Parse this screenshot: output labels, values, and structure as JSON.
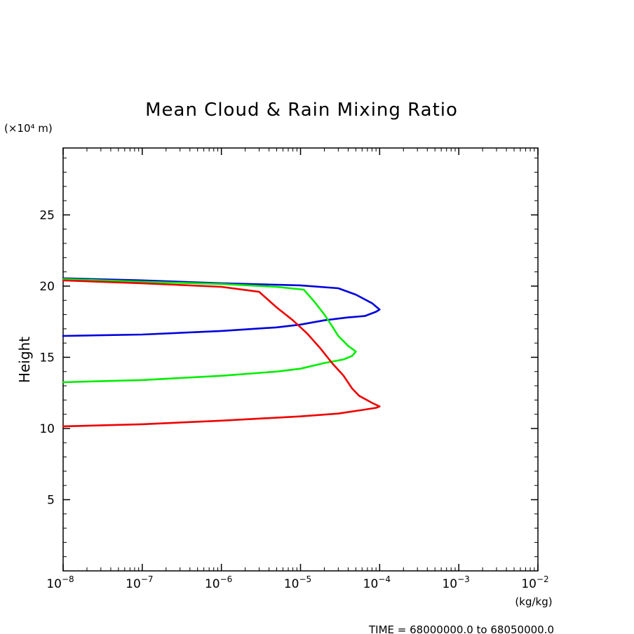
{
  "chart_data": {
    "type": "line",
    "title": "Mean Cloud & Rain Mixing Ratio",
    "ylabel": "Height",
    "y_unit_label": "(×10⁴ m)",
    "x_unit_label": "(kg/kg)",
    "footer": "TIME = 68000000.0 to 68050000.0",
    "xscale": "log",
    "xlim": [
      1e-08,
      0.01
    ],
    "ylim": [
      0,
      29.7
    ],
    "x_ticks": [
      {
        "base": "10",
        "exp": "−8",
        "value": 1e-08
      },
      {
        "base": "10",
        "exp": "−7",
        "value": 1e-07
      },
      {
        "base": "10",
        "exp": "−6",
        "value": 1e-06
      },
      {
        "base": "10",
        "exp": "−5",
        "value": 1e-05
      },
      {
        "base": "10",
        "exp": "−4",
        "value": 0.0001
      },
      {
        "base": "10",
        "exp": "−3",
        "value": 0.001
      },
      {
        "base": "10",
        "exp": "−2",
        "value": 0.01
      }
    ],
    "y_ticks": [
      {
        "label": "5",
        "value": 5
      },
      {
        "label": "10",
        "value": 10
      },
      {
        "label": "15",
        "value": 15
      },
      {
        "label": "20",
        "value": 20
      },
      {
        "label": "25",
        "value": 25
      }
    ],
    "grid": false,
    "legend": "none",
    "series": [
      {
        "color": "#0000dd",
        "points": [
          [
            1e-08,
            16.5
          ],
          [
            1e-07,
            16.6
          ],
          [
            1e-06,
            16.85
          ],
          [
            5e-06,
            17.1
          ],
          [
            1e-05,
            17.3
          ],
          [
            2e-05,
            17.6
          ],
          [
            4e-05,
            17.8
          ],
          [
            6.5e-05,
            17.9
          ],
          [
            9e-05,
            18.2
          ],
          [
            0.0001,
            18.35
          ],
          [
            8e-05,
            18.8
          ],
          [
            5e-05,
            19.4
          ],
          [
            3e-05,
            19.85
          ],
          [
            1e-05,
            20.05
          ],
          [
            1e-06,
            20.2
          ],
          [
            1e-07,
            20.4
          ],
          [
            1e-08,
            20.55
          ]
        ]
      },
      {
        "color": "#00ee00",
        "points": [
          [
            1e-08,
            13.25
          ],
          [
            1e-07,
            13.4
          ],
          [
            1e-06,
            13.7
          ],
          [
            5e-06,
            14.0
          ],
          [
            1e-05,
            14.2
          ],
          [
            2e-05,
            14.6
          ],
          [
            3.5e-05,
            14.85
          ],
          [
            4.5e-05,
            15.1
          ],
          [
            5e-05,
            15.4
          ],
          [
            4e-05,
            15.8
          ],
          [
            3e-05,
            16.5
          ],
          [
            2.5e-05,
            17.2
          ],
          [
            2e-05,
            18.0
          ],
          [
            1.5e-05,
            18.9
          ],
          [
            1.1e-05,
            19.75
          ],
          [
            5e-06,
            19.95
          ],
          [
            1e-06,
            20.15
          ],
          [
            1e-07,
            20.3
          ],
          [
            1e-08,
            20.5
          ]
        ]
      },
      {
        "color": "#ee0000",
        "points": [
          [
            1e-08,
            10.15
          ],
          [
            1e-07,
            10.3
          ],
          [
            1e-06,
            10.55
          ],
          [
            1e-05,
            10.85
          ],
          [
            3e-05,
            11.05
          ],
          [
            6e-05,
            11.3
          ],
          [
            9e-05,
            11.45
          ],
          [
            0.0001,
            11.55
          ],
          [
            8e-05,
            11.8
          ],
          [
            5.5e-05,
            12.3
          ],
          [
            4.5e-05,
            12.8
          ],
          [
            3.5e-05,
            13.7
          ],
          [
            2.5e-05,
            14.6
          ],
          [
            1.8e-05,
            15.6
          ],
          [
            1.2e-05,
            16.7
          ],
          [
            8e-06,
            17.6
          ],
          [
            5e-06,
            18.5
          ],
          [
            3e-06,
            19.6
          ],
          [
            1e-06,
            19.95
          ],
          [
            1e-07,
            20.2
          ],
          [
            1e-08,
            20.4
          ]
        ]
      }
    ]
  }
}
